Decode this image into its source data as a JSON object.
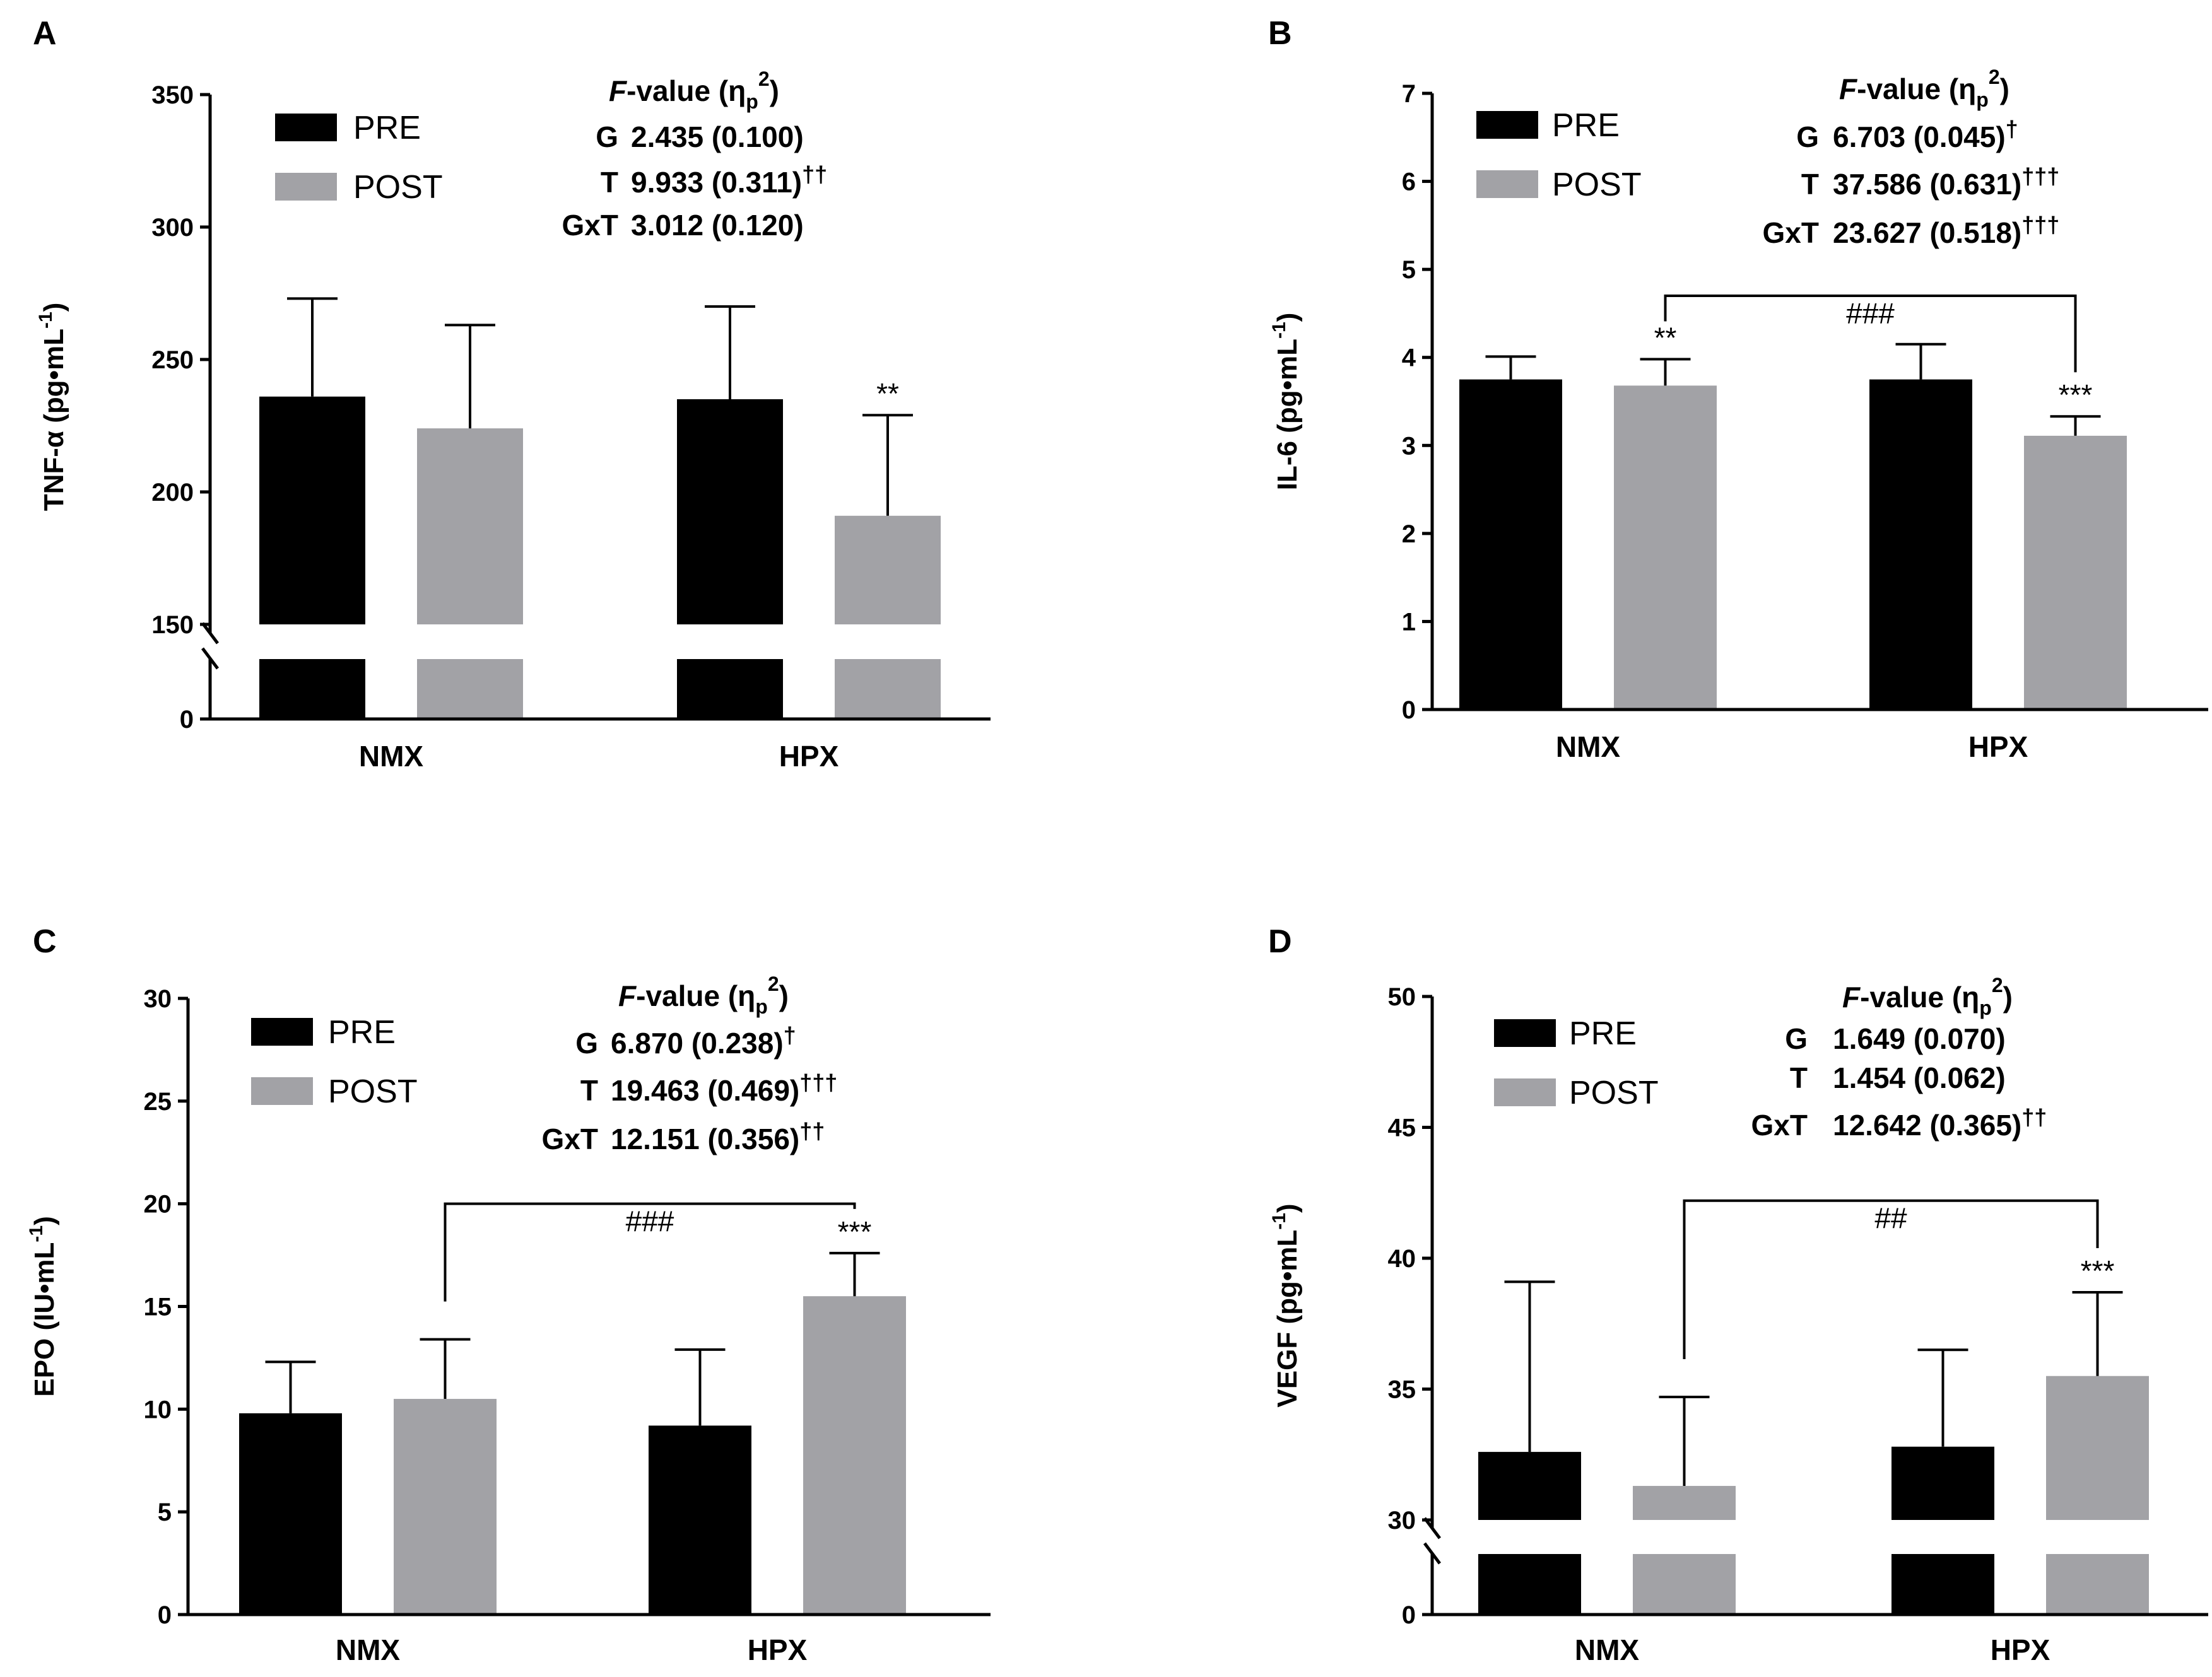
{
  "colors": {
    "pre": "#000000",
    "post": "#a2a2a6",
    "axis": "#000000"
  },
  "legend": {
    "pre_label": "PRE",
    "post_label": "POST"
  },
  "chart_data": [
    {
      "panel": "A",
      "type": "bar",
      "categories": [
        "NMX",
        "HPX"
      ],
      "series": [
        {
          "name": "PRE",
          "values": [
            236,
            235
          ],
          "errors": [
            37,
            35
          ]
        },
        {
          "name": "POST",
          "values": [
            224,
            191
          ],
          "errors": [
            39,
            38
          ]
        }
      ],
      "ylabel_main": "TNF-α (pg•mL",
      "ylabel_sup": "-1",
      "ylabel_close": ")",
      "y_break": {
        "lower": [
          0,
          0
        ],
        "upper": [
          150,
          350
        ]
      },
      "yticks": [
        150,
        200,
        250,
        300,
        350
      ],
      "ytick_labels": [
        "150",
        "200",
        "250",
        "300",
        "350"
      ],
      "lower_tick_label": "0",
      "stats": {
        "header_italic": "F",
        "header_rest": "-value (η",
        "header_sub": "p",
        "header_sup": "2",
        "header_close": ")",
        "rows": [
          {
            "label": "G",
            "value": "2.435 (0.100)",
            "mark": ""
          },
          {
            "label": "T",
            "value": "9.933 (0.311)",
            "mark": "††"
          },
          {
            "label": "GxT",
            "value": "3.012 (0.120)",
            "mark": ""
          }
        ]
      },
      "annotations": [
        {
          "text": "**",
          "category": 1,
          "series": 1
        }
      ],
      "bracket": null
    },
    {
      "panel": "B",
      "type": "bar",
      "categories": [
        "NMX",
        "HPX"
      ],
      "series": [
        {
          "name": "PRE",
          "values": [
            3.75,
            3.75
          ],
          "errors": [
            0.26,
            0.4
          ]
        },
        {
          "name": "POST",
          "values": [
            3.68,
            3.11
          ],
          "errors": [
            0.3,
            0.22
          ]
        }
      ],
      "ylabel_main": "IL-6 (pg•mL",
      "ylabel_sup": "-1",
      "ylabel_close": ")",
      "y_break": null,
      "ylim": [
        0,
        7
      ],
      "yticks": [
        0,
        1,
        2,
        3,
        4,
        5,
        6,
        7
      ],
      "ytick_labels": [
        "0",
        "1",
        "2",
        "3",
        "4",
        "5",
        "6",
        "7"
      ],
      "stats": {
        "header_italic": "F",
        "header_rest": "-value (η",
        "header_sub": "p",
        "header_sup": "2",
        "header_close": ")",
        "rows": [
          {
            "label": "G",
            "value": "6.703 (0.045)",
            "mark": "†"
          },
          {
            "label": "T",
            "value": "37.586 (0.631)",
            "mark": "†††"
          },
          {
            "label": "GxT",
            "value": "23.627 (0.518)",
            "mark": "†††"
          }
        ]
      },
      "annotations": [
        {
          "text": "**",
          "category": 0,
          "series": 1
        },
        {
          "text": "***",
          "category": 1,
          "series": 1
        }
      ],
      "bracket": {
        "text": "###",
        "y": 4.7,
        "from": [
          0,
          1
        ],
        "to": [
          1,
          1
        ]
      }
    },
    {
      "panel": "C",
      "type": "bar",
      "categories": [
        "NMX",
        "HPX"
      ],
      "series": [
        {
          "name": "PRE",
          "values": [
            9.8,
            9.2
          ],
          "errors": [
            2.5,
            3.7
          ]
        },
        {
          "name": "POST",
          "values": [
            10.5,
            15.5
          ],
          "errors": [
            2.9,
            2.1
          ]
        }
      ],
      "ylabel_main": "EPO (IU•mL",
      "ylabel_sup": "-1",
      "ylabel_close": ")",
      "y_break": null,
      "ylim": [
        0,
        30
      ],
      "yticks": [
        0,
        5,
        10,
        15,
        20,
        25,
        30
      ],
      "ytick_labels": [
        "0",
        "5",
        "10",
        "15",
        "20",
        "25",
        "30"
      ],
      "stats": {
        "header_italic": "F",
        "header_rest": "-value (η",
        "header_sub": "p",
        "header_sup": "2",
        "header_close": ")",
        "rows": [
          {
            "label": "G",
            "value": "6.870 (0.238)",
            "mark": "†"
          },
          {
            "label": "T",
            "value": "19.463 (0.469)",
            "mark": "†††"
          },
          {
            "label": "GxT",
            "value": "12.151 (0.356)",
            "mark": "††"
          }
        ]
      },
      "annotations": [
        {
          "text": "***",
          "category": 1,
          "series": 1
        }
      ],
      "bracket": {
        "text": "###",
        "y": 20,
        "from": [
          0,
          1
        ],
        "to": [
          1,
          1
        ]
      }
    },
    {
      "panel": "D",
      "type": "bar",
      "categories": [
        "NMX",
        "HPX"
      ],
      "series": [
        {
          "name": "PRE",
          "values": [
            32.6,
            32.8
          ],
          "errors": [
            6.5,
            3.7
          ]
        },
        {
          "name": "POST",
          "values": [
            31.3,
            35.5
          ],
          "errors": [
            3.4,
            3.2
          ]
        }
      ],
      "ylabel_main": "VEGF (pg•mL",
      "ylabel_sup": "-1",
      "ylabel_close": ")",
      "y_break": {
        "lower": [
          0,
          0
        ],
        "upper": [
          30,
          50
        ]
      },
      "yticks": [
        30,
        35,
        40,
        45,
        50
      ],
      "ytick_labels": [
        "30",
        "35",
        "40",
        "45",
        "50"
      ],
      "lower_tick_label": "0",
      "stats": {
        "header_italic": "F",
        "header_rest": "-value (η",
        "header_sub": "p",
        "header_sup": "2",
        "header_close": ")",
        "rows": [
          {
            "label": "G",
            "value": "1.649 (0.070)",
            "mark": ""
          },
          {
            "label": "T",
            "value": "1.454 (0.062)",
            "mark": ""
          },
          {
            "label": "GxT",
            "value": "12.642 (0.365)",
            "mark": "††"
          }
        ]
      },
      "annotations": [
        {
          "text": "***",
          "category": 1,
          "series": 1
        }
      ],
      "bracket": {
        "text": "##",
        "y": 42.2,
        "from": [
          0,
          1
        ],
        "to": [
          1,
          1
        ]
      }
    }
  ]
}
